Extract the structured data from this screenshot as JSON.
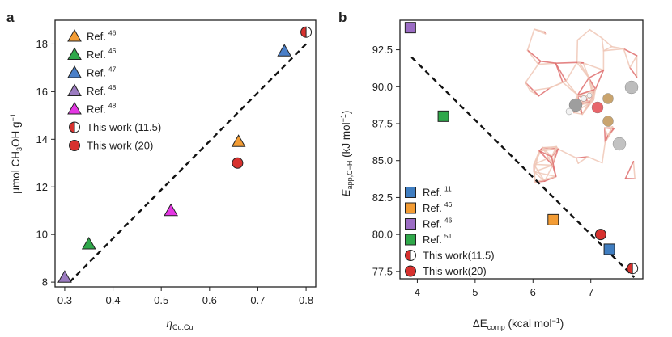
{
  "chart_data": [
    {
      "type": "scatter",
      "panel": "a",
      "xlabel": "η",
      "xlabel_sub": "Cu.Cu",
      "ylabel_parts": [
        "μmol CH",
        "3",
        "OH g",
        "−1"
      ],
      "xlim": [
        0.28,
        0.82
      ],
      "ylim": [
        7.8,
        19.0
      ],
      "xticks": [
        "0.3",
        "0.4",
        "0.5",
        "0.6",
        "0.7",
        "0.8"
      ],
      "xtick_values": [
        0.3,
        0.4,
        0.5,
        0.6,
        0.7,
        0.8
      ],
      "yticks": [
        "8",
        "10",
        "12",
        "14",
        "16",
        "18"
      ],
      "ytick_values": [
        8,
        10,
        12,
        14,
        16,
        18
      ],
      "fit_line": {
        "x": [
          0.31,
          0.8
        ],
        "y": [
          8.0,
          18.0
        ],
        "style": "dashed"
      },
      "legend_position": "top-left",
      "series": [
        {
          "label": "Ref.",
          "ref": "46",
          "marker": "triangle",
          "color": "#f39c34",
          "x": [
            0.66
          ],
          "y": [
            13.9
          ]
        },
        {
          "label": "Ref.",
          "ref": "46",
          "marker": "triangle",
          "color": "#2fa84a",
          "x": [
            0.35
          ],
          "y": [
            9.6
          ]
        },
        {
          "label": "Ref.",
          "ref": "47",
          "marker": "triangle",
          "color": "#4a7fc8",
          "x": [
            0.755
          ],
          "y": [
            17.7
          ]
        },
        {
          "label": "Ref.",
          "ref": "48",
          "marker": "triangle",
          "color": "#9b7bc0",
          "x": [
            0.3
          ],
          "y": [
            8.2
          ]
        },
        {
          "label": "Ref.",
          "ref": "48",
          "marker": "triangle",
          "color": "#e436e3",
          "x": [
            0.52
          ],
          "y": [
            11.0
          ]
        },
        {
          "label": "This work (11.5)",
          "ref": "",
          "marker": "half-circle",
          "color": "#d7312e",
          "x": [
            0.8
          ],
          "y": [
            18.5
          ]
        },
        {
          "label": "This work (20)",
          "ref": "",
          "marker": "circle",
          "color": "#d7312e",
          "x": [
            0.658
          ],
          "y": [
            13.0
          ]
        }
      ]
    },
    {
      "type": "scatter",
      "panel": "b",
      "xlabel": "ΔE",
      "xlabel_sub": "comp",
      "xlabel_unit": " (kcal mol",
      "xlabel_unit_sup": "−1",
      "xlabel_close": ")",
      "ylabel": "E",
      "ylabel_sub": "app,C−H",
      "ylabel_unit": " (kJ mol",
      "ylabel_unit_sup": "−1",
      "ylabel_close": ")",
      "xlim": [
        3.7,
        7.9
      ],
      "ylim": [
        77.0,
        94.5
      ],
      "xticks": [
        "4",
        "5",
        "6",
        "7"
      ],
      "xtick_values": [
        4,
        5,
        6,
        7
      ],
      "yticks": [
        "77.5",
        "80.0",
        "82.5",
        "85.0",
        "87.5",
        "90.0",
        "92.5"
      ],
      "ytick_values": [
        77.5,
        80.0,
        82.5,
        85.0,
        87.5,
        90.0,
        92.5
      ],
      "fit_line": {
        "x": [
          3.9,
          7.75
        ],
        "y": [
          92.0,
          77.1
        ],
        "style": "dashed"
      },
      "legend_position": "bottom-left",
      "inset": "molecular structure rendering (zeolite framework with Cu sites)",
      "series": [
        {
          "label": "Ref.",
          "ref": "11",
          "marker": "square",
          "color": "#3f7dc0",
          "x": [
            7.32
          ],
          "y": [
            79.0
          ]
        },
        {
          "label": "Ref.",
          "ref": "46",
          "marker": "square",
          "color": "#f39c34",
          "x": [
            6.35
          ],
          "y": [
            81.0
          ]
        },
        {
          "label": "Ref.",
          "ref": "46",
          "marker": "square",
          "color": "#9b6cc4",
          "x": [
            3.88
          ],
          "y": [
            94.0
          ]
        },
        {
          "label": "Ref.",
          "ref": "51",
          "marker": "square",
          "color": "#2fa84a",
          "x": [
            4.45
          ],
          "y": [
            88.0
          ]
        },
        {
          "label": "This work(11.5)",
          "ref": "",
          "marker": "half-circle",
          "color": "#d7312e",
          "x": [
            7.72
          ],
          "y": [
            77.7
          ]
        },
        {
          "label": "This work(20)",
          "ref": "",
          "marker": "circle",
          "color": "#d7312e",
          "x": [
            7.17
          ],
          "y": [
            80.0
          ]
        }
      ]
    }
  ]
}
